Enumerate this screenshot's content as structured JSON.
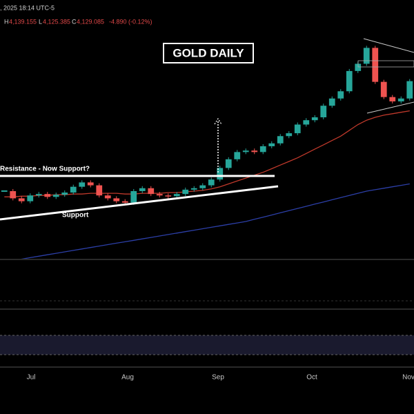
{
  "chart_data": {
    "type": "candlestick",
    "title": "GOLD DAILY",
    "header": {
      "date": ", 2025 18:14 UTC-5",
      "high_label": "H",
      "high": "4,139.155",
      "low_label": "L",
      "low": "4,125.385",
      "close_label": "C",
      "close": "4,129.085",
      "change": "-4.890 (-0.12%)"
    },
    "annotations": [
      "Resistance - Now Support?",
      "Support"
    ],
    "months": [
      "Jul",
      "Aug",
      "Sep",
      "Oct",
      "Nov"
    ],
    "values": [
      3370,
      3320,
      3300,
      3340,
      3350,
      3330,
      3345,
      3360,
      3400,
      3430,
      3410,
      3340,
      3320,
      3300,
      3290,
      3370,
      3390,
      3350,
      3340,
      3335,
      3350,
      3380,
      3390,
      3410,
      3450,
      3530,
      3590,
      3640,
      3650,
      3640,
      3680,
      3700,
      3750,
      3770,
      3830,
      3860,
      3880,
      3960,
      4010,
      4060,
      4200,
      4250,
      4360,
      4125,
      4020,
      3990,
      4010,
      4130
    ],
    "up_color": "#26a69a",
    "down_color": "#ef5350",
    "ylim": [
      2850,
      4500
    ],
    "series": [
      {
        "color": "#c0392b",
        "values": [
          3330,
          3330,
          3335,
          3335,
          3340,
          3340,
          3345,
          3345,
          3350,
          3350,
          3355,
          3355,
          3355,
          3355,
          3350,
          3350,
          3355,
          3355,
          3355,
          3360,
          3360,
          3365,
          3370,
          3375,
          3385,
          3400,
          3420,
          3440,
          3460,
          3480,
          3500,
          3525,
          3550,
          3575,
          3600,
          3630,
          3660,
          3690,
          3720,
          3750,
          3790,
          3830,
          3860,
          3880,
          3895,
          3905,
          3915,
          3925
        ]
      },
      {
        "color": "#2c3fa8",
        "values": [
          2880,
          2890,
          2900,
          2910,
          2920,
          2930,
          2940,
          2950,
          2960,
          2970,
          2980,
          2990,
          3000,
          3010,
          3020,
          3030,
          3040,
          3050,
          3060,
          3070,
          3080,
          3090,
          3100,
          3110,
          3120,
          3130,
          3140,
          3150,
          3160,
          3175,
          3190,
          3205,
          3220,
          3235,
          3250,
          3265,
          3280,
          3295,
          3310,
          3325,
          3340,
          3355,
          3370,
          3380,
          3390,
          3400,
          3410,
          3420
        ]
      }
    ]
  }
}
